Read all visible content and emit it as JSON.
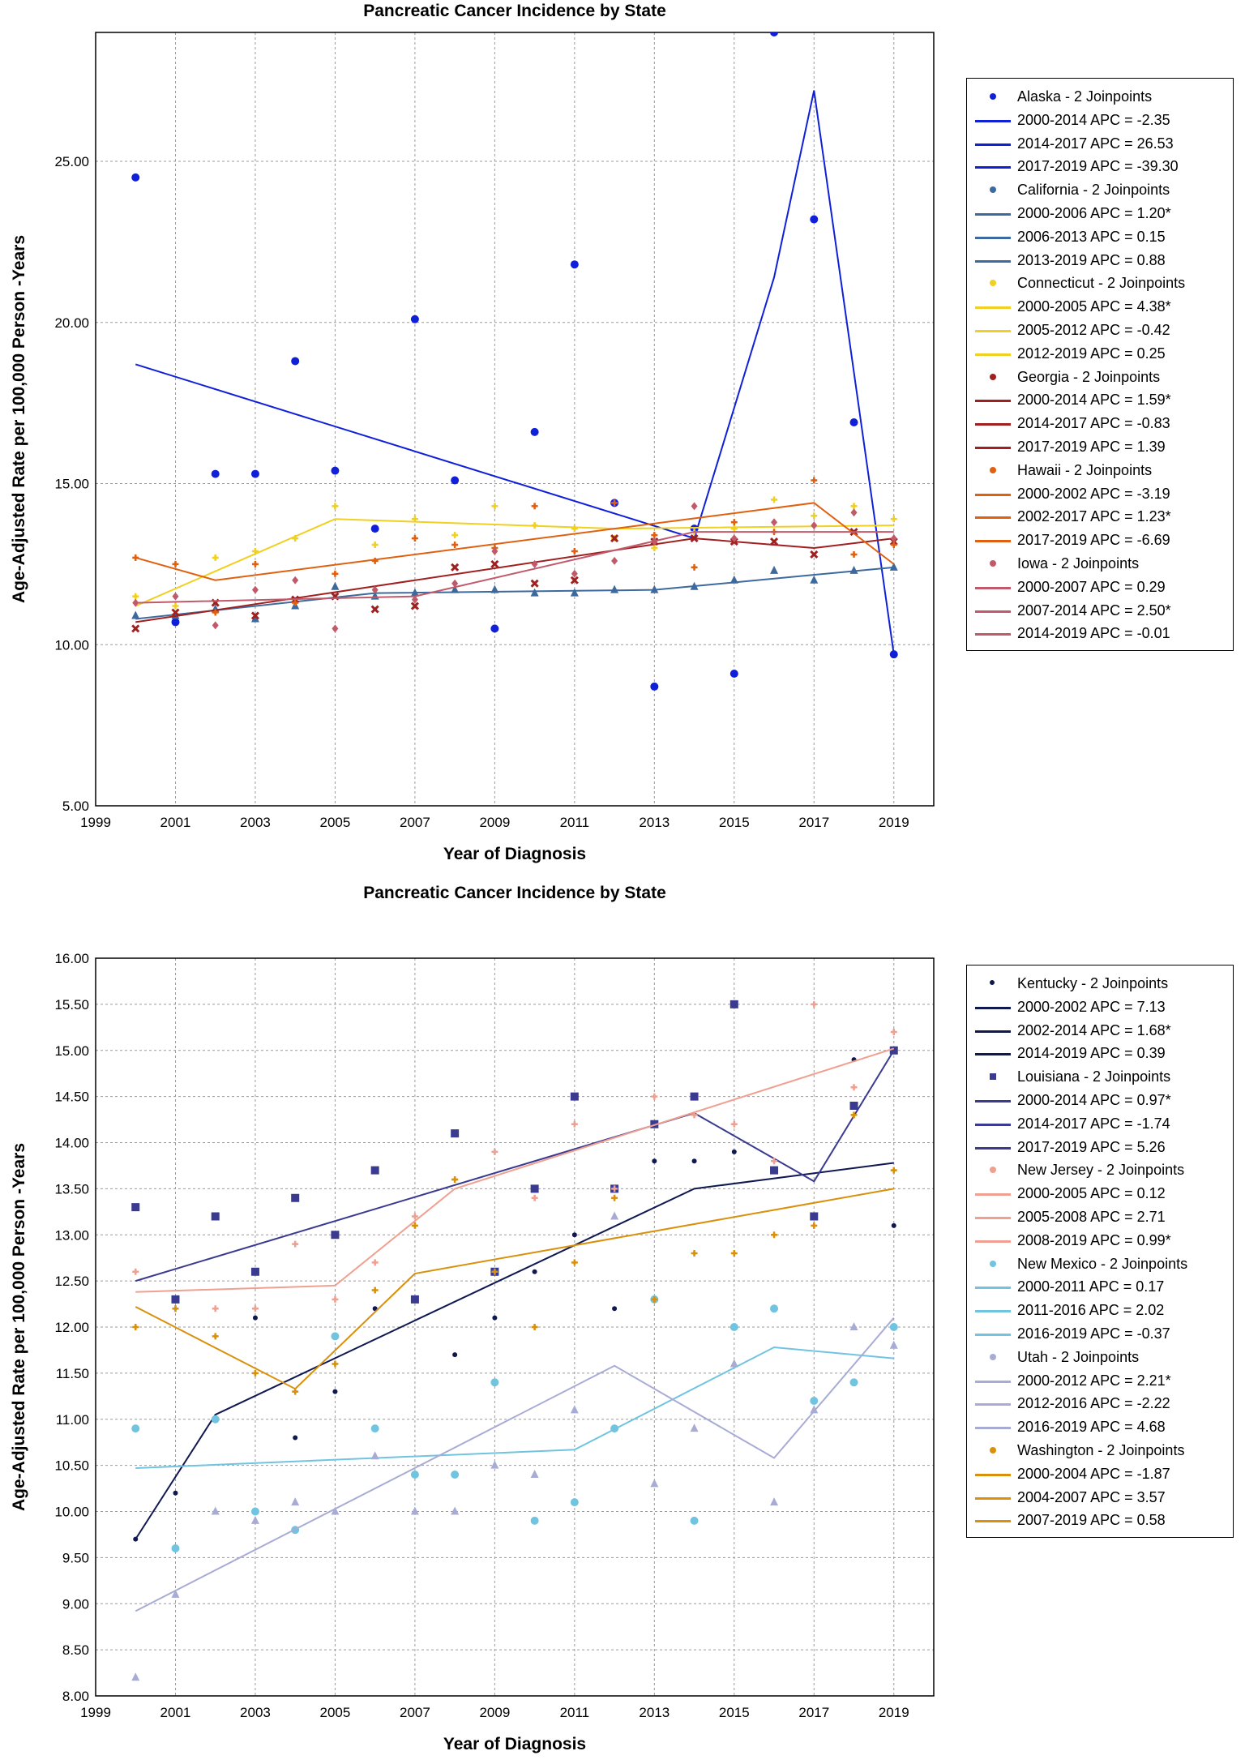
{
  "chart_data": [
    {
      "type": "scatter",
      "title": "Pancreatic Cancer Incidence by State",
      "xlabel": "Year of Diagnosis",
      "ylabel": "Age-Adjusted Rate per 100,000 Person -Years",
      "xlim": [
        1999,
        2020
      ],
      "ylim": [
        5,
        29
      ],
      "x_ticks": [
        "1999",
        "2001",
        "2003",
        "2005",
        "2007",
        "2009",
        "2011",
        "2013",
        "2015",
        "2017",
        "2019"
      ],
      "y_ticks": [
        "5.00",
        "10.00",
        "15.00",
        "20.00",
        "25.00"
      ],
      "grid": true,
      "legend_position": "right",
      "series": [
        {
          "name": "Alaska - 2 Joinpoints",
          "color": "#1020d8",
          "marker": "circle",
          "x": [
            2000,
            2001,
            2002,
            2003,
            2004,
            2005,
            2006,
            2007,
            2008,
            2009,
            2010,
            2011,
            2012,
            2013,
            2014,
            2015,
            2016,
            2017,
            2018,
            2019
          ],
          "y": [
            24.5,
            10.7,
            15.3,
            15.3,
            18.8,
            15.4,
            13.6,
            20.1,
            15.1,
            10.5,
            16.6,
            21.8,
            14.4,
            8.7,
            13.6,
            9.1,
            29.0,
            23.2,
            16.9,
            9.7
          ],
          "fit": {
            "x": [
              2000,
              2014,
              2016,
              2017,
              2019
            ],
            "y": [
              18.7,
              13.3,
              21.4,
              27.2,
              9.7
            ]
          },
          "segments": [
            "2000-2014 APC =  -2.35",
            "2014-2017 APC =  26.53",
            "2017-2019 APC = -39.30"
          ]
        },
        {
          "name": "California - 2 Joinpoints",
          "color": "#3d6a9e",
          "marker": "triangle",
          "x": [
            2000,
            2001,
            2002,
            2003,
            2004,
            2005,
            2006,
            2007,
            2008,
            2009,
            2010,
            2011,
            2012,
            2013,
            2014,
            2015,
            2016,
            2017,
            2018,
            2019
          ],
          "y": [
            10.9,
            10.9,
            11.1,
            10.8,
            11.2,
            11.8,
            11.5,
            11.6,
            11.7,
            11.7,
            11.6,
            11.6,
            11.7,
            11.7,
            11.8,
            12.0,
            12.3,
            12.0,
            12.3,
            12.4
          ],
          "fit": {
            "x": [
              2000,
              2006,
              2013,
              2019
            ],
            "y": [
              10.8,
              11.6,
              11.7,
              12.4
            ]
          },
          "segments": [
            "2000-2006 APC = 1.20*",
            "2006-2013 APC = 0.15",
            "2013-2019 APC = 0.88"
          ]
        },
        {
          "name": "Connecticut - 2 Joinpoints",
          "color": "#f0d020",
          "marker": "star",
          "x": [
            2000,
            2001,
            2002,
            2003,
            2004,
            2005,
            2006,
            2007,
            2008,
            2009,
            2010,
            2011,
            2012,
            2013,
            2014,
            2015,
            2016,
            2017,
            2018,
            2019
          ],
          "y": [
            11.5,
            11.2,
            12.7,
            12.9,
            13.3,
            14.3,
            13.1,
            13.9,
            13.4,
            14.3,
            13.7,
            13.6,
            13.3,
            13.0,
            13.5,
            13.6,
            14.5,
            14.0,
            14.3,
            13.9
          ],
          "fit": {
            "x": [
              2000,
              2005,
              2012,
              2019
            ],
            "y": [
              11.2,
              13.9,
              13.6,
              13.7
            ]
          },
          "segments": [
            "2000-2005 APC = 4.38*",
            "2005-2012 APC = -0.42",
            "2012-2019 APC = 0.25"
          ]
        },
        {
          "name": "Georgia - 2 Joinpoints",
          "color": "#a02020",
          "marker": "x",
          "x": [
            2000,
            2001,
            2002,
            2003,
            2004,
            2005,
            2006,
            2007,
            2008,
            2009,
            2010,
            2011,
            2012,
            2013,
            2014,
            2015,
            2016,
            2017,
            2018,
            2019
          ],
          "y": [
            10.5,
            11.0,
            11.3,
            10.9,
            11.4,
            11.5,
            11.1,
            11.2,
            12.4,
            12.5,
            11.9,
            12.0,
            13.3,
            13.2,
            13.3,
            13.2,
            13.2,
            12.8,
            13.5,
            13.2
          ],
          "fit": {
            "x": [
              2000,
              2014,
              2017,
              2019
            ],
            "y": [
              10.7,
              13.3,
              13.0,
              13.3
            ]
          },
          "segments": [
            "2000-2014 APC = 1.59*",
            "2014-2017 APC = -0.83",
            "2017-2019 APC = 1.39"
          ]
        },
        {
          "name": "Hawaii - 2 Joinpoints",
          "color": "#e06010",
          "marker": "star",
          "x": [
            2000,
            2001,
            2002,
            2003,
            2004,
            2005,
            2006,
            2007,
            2008,
            2009,
            2010,
            2011,
            2012,
            2013,
            2014,
            2015,
            2016,
            2017,
            2018,
            2019
          ],
          "y": [
            12.7,
            12.5,
            11.0,
            12.5,
            11.3,
            12.2,
            12.6,
            13.3,
            13.1,
            13.0,
            14.3,
            12.9,
            14.4,
            13.4,
            12.4,
            13.8,
            13.5,
            15.1,
            12.8,
            13.1
          ],
          "fit": {
            "x": [
              2000,
              2002,
              2017,
              2019
            ],
            "y": [
              12.7,
              12.0,
              14.4,
              12.5
            ]
          },
          "segments": [
            "2000-2002 APC = -3.19",
            "2002-2017 APC = 1.23*",
            "2017-2019 APC = -6.69"
          ]
        },
        {
          "name": "Iowa - 2 Joinpoints",
          "color": "#c05a6a",
          "marker": "diamond",
          "x": [
            2000,
            2001,
            2002,
            2003,
            2004,
            2005,
            2006,
            2007,
            2008,
            2009,
            2010,
            2011,
            2012,
            2013,
            2014,
            2015,
            2016,
            2017,
            2018,
            2019
          ],
          "y": [
            11.3,
            11.5,
            10.6,
            11.7,
            12.0,
            10.5,
            11.7,
            11.4,
            11.9,
            12.9,
            12.5,
            12.2,
            12.6,
            13.2,
            14.3,
            13.3,
            13.8,
            13.7,
            14.1,
            13.3
          ],
          "fit": {
            "x": [
              2000,
              2007,
              2014,
              2019
            ],
            "y": [
              11.3,
              11.5,
              13.5,
              13.5
            ]
          },
          "segments": [
            "2000-2007 APC = 0.29",
            "2007-2014 APC = 2.50*",
            "2014-2019 APC = -0.01"
          ]
        }
      ]
    },
    {
      "type": "scatter",
      "title": "Pancreatic Cancer Incidence by State",
      "xlabel": "Year of Diagnosis",
      "ylabel": "Age-Adjusted Rate per 100,000 Person -Years",
      "xlim": [
        1999,
        2020
      ],
      "ylim": [
        8,
        16
      ],
      "x_ticks": [
        "1999",
        "2001",
        "2003",
        "2005",
        "2007",
        "2009",
        "2011",
        "2013",
        "2015",
        "2017",
        "2019"
      ],
      "y_ticks": [
        "8.00",
        "8.50",
        "9.00",
        "9.50",
        "10.00",
        "10.50",
        "11.00",
        "11.50",
        "12.00",
        "12.50",
        "13.00",
        "13.50",
        "14.00",
        "14.50",
        "15.00",
        "15.50",
        "16.00"
      ],
      "grid": true,
      "legend_position": "right",
      "series": [
        {
          "name": "Kentucky - 2 Joinpoints",
          "color": "#101850",
          "marker": "dot",
          "x": [
            2000,
            2001,
            2002,
            2003,
            2004,
            2005,
            2006,
            2007,
            2008,
            2009,
            2010,
            2011,
            2012,
            2013,
            2014,
            2015,
            2016,
            2017,
            2018,
            2019
          ],
          "y": [
            9.7,
            10.2,
            11.0,
            12.1,
            10.8,
            11.3,
            12.2,
            12.3,
            11.7,
            12.1,
            12.6,
            13.0,
            12.2,
            13.8,
            13.8,
            13.9,
            13.7,
            13.2,
            14.9,
            13.1
          ],
          "fit": {
            "x": [
              2000,
              2002,
              2014,
              2019
            ],
            "y": [
              9.7,
              11.05,
              13.5,
              13.78
            ]
          },
          "segments": [
            "2000-2002 APC = 7.13",
            "2002-2014 APC = 1.68*",
            "2014-2019 APC = 0.39"
          ]
        },
        {
          "name": "Louisiana - 2 Joinpoints",
          "color": "#3a3a90",
          "marker": "square",
          "x": [
            2000,
            2001,
            2002,
            2003,
            2004,
            2005,
            2006,
            2007,
            2008,
            2009,
            2010,
            2011,
            2012,
            2013,
            2014,
            2015,
            2016,
            2017,
            2018,
            2019
          ],
          "y": [
            13.3,
            12.3,
            13.2,
            12.6,
            13.4,
            13.0,
            13.7,
            12.3,
            14.1,
            12.6,
            13.5,
            14.5,
            13.5,
            14.2,
            14.5,
            15.5,
            13.7,
            13.2,
            14.4,
            15.0
          ],
          "fit": {
            "x": [
              2000,
              2014,
              2017,
              2019
            ],
            "y": [
              12.5,
              14.32,
              13.58,
              15.0
            ]
          },
          "segments": [
            "2000-2014 APC = 0.97*",
            "2014-2017 APC = -1.74",
            "2017-2019 APC = 5.26"
          ]
        },
        {
          "name": "New Jersey - 2 Joinpoints",
          "color": "#f0a090",
          "marker": "star",
          "x": [
            2000,
            2001,
            2002,
            2003,
            2004,
            2005,
            2006,
            2007,
            2008,
            2009,
            2010,
            2011,
            2012,
            2013,
            2014,
            2015,
            2016,
            2017,
            2018,
            2019
          ],
          "y": [
            12.6,
            12.2,
            12.2,
            12.2,
            12.9,
            12.3,
            12.7,
            13.2,
            13.6,
            13.9,
            13.4,
            14.2,
            13.5,
            14.5,
            14.3,
            14.2,
            13.8,
            15.5,
            14.6,
            15.2
          ],
          "fit": {
            "x": [
              2000,
              2005,
              2008,
              2019
            ],
            "y": [
              12.38,
              12.45,
              13.5,
              15.02
            ]
          },
          "segments": [
            "2000-2005 APC = 0.12",
            "2005-2008 APC = 2.71",
            "2008-2019 APC = 0.99*"
          ]
        },
        {
          "name": "New Mexico - 2 Joinpoints",
          "color": "#70c4e0",
          "marker": "circle",
          "x": [
            2000,
            2001,
            2002,
            2003,
            2004,
            2005,
            2006,
            2007,
            2008,
            2009,
            2010,
            2011,
            2012,
            2013,
            2014,
            2015,
            2016,
            2017,
            2018,
            2019
          ],
          "y": [
            10.9,
            9.6,
            11.0,
            10.0,
            9.8,
            11.9,
            10.9,
            10.4,
            10.4,
            11.4,
            9.9,
            10.1,
            10.9,
            12.3,
            9.9,
            12.0,
            12.2,
            11.2,
            11.4,
            12.0
          ],
          "fit": {
            "x": [
              2000,
              2011,
              2016,
              2019
            ],
            "y": [
              10.47,
              10.67,
              11.78,
              11.66
            ]
          },
          "segments": [
            "2000-2011 APC = 0.17",
            "2011-2016 APC = 2.02",
            "2016-2019 APC = -0.37"
          ]
        },
        {
          "name": "Utah - 2 Joinpoints",
          "color": "#a8acd4",
          "marker": "triangle",
          "x": [
            2000,
            2001,
            2002,
            2003,
            2004,
            2005,
            2006,
            2007,
            2008,
            2009,
            2010,
            2011,
            2012,
            2013,
            2014,
            2015,
            2016,
            2017,
            2018,
            2019
          ],
          "y": [
            8.2,
            9.1,
            10.0,
            9.9,
            10.1,
            10.0,
            10.6,
            10.0,
            10.0,
            10.5,
            10.4,
            11.1,
            13.2,
            10.3,
            10.9,
            11.6,
            10.1,
            11.1,
            12.0,
            11.8
          ],
          "fit": {
            "x": [
              2000,
              2012,
              2016,
              2019
            ],
            "y": [
              8.92,
              11.58,
              10.58,
              12.1
            ]
          },
          "segments": [
            "2000-2012 APC = 2.21*",
            "2012-2016 APC = -2.22",
            "2016-2019 APC = 4.68"
          ]
        },
        {
          "name": "Washington - 2 Joinpoints",
          "color": "#d9900a",
          "marker": "star",
          "x": [
            2000,
            2001,
            2002,
            2003,
            2004,
            2005,
            2006,
            2007,
            2008,
            2009,
            2010,
            2011,
            2012,
            2013,
            2014,
            2015,
            2016,
            2017,
            2018,
            2019
          ],
          "y": [
            12.0,
            12.2,
            11.9,
            11.5,
            11.3,
            11.6,
            12.4,
            13.1,
            13.6,
            12.6,
            12.0,
            12.7,
            13.4,
            12.3,
            12.8,
            12.8,
            13.0,
            13.1,
            14.3,
            13.7
          ],
          "fit": {
            "x": [
              2000,
              2004,
              2007,
              2019
            ],
            "y": [
              12.22,
              11.33,
              12.58,
              13.5
            ]
          },
          "segments": [
            "2000-2004 APC = -1.87",
            "2004-2007 APC = 3.57",
            "2007-2019 APC = 0.58"
          ]
        }
      ]
    }
  ]
}
